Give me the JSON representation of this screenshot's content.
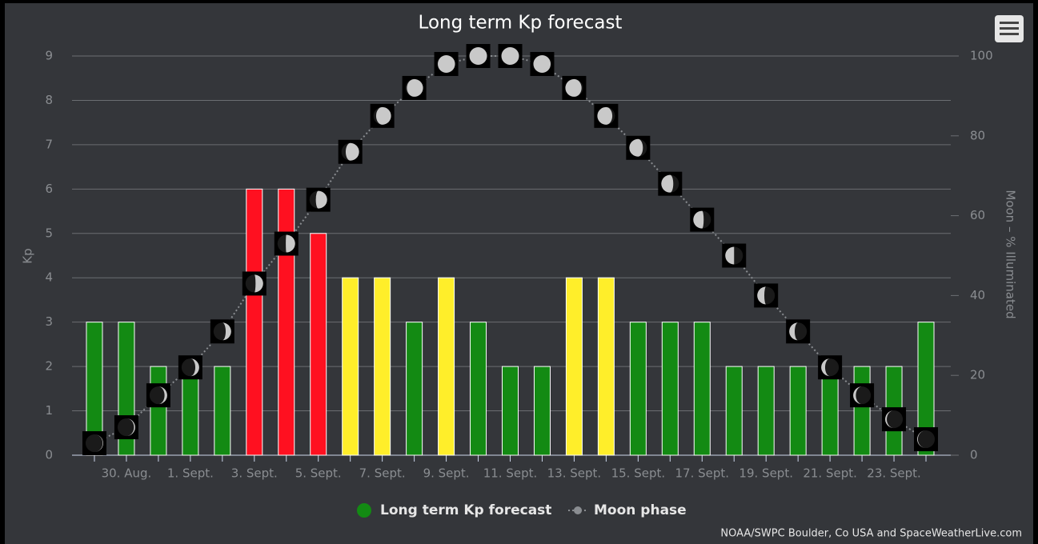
{
  "chart_data": {
    "type": "bar",
    "title": "Long term Kp forecast",
    "y_label": "Kp",
    "y2_label": "Moon – % Illuminated",
    "credit": "NOAA/SWPC Boulder, Co USA and SpaceWeatherLive.com",
    "categories": [
      null,
      "30. Aug.",
      null,
      "1. Sept.",
      null,
      "3. Sept.",
      null,
      "5. Sept.",
      null,
      "7. Sept.",
      null,
      "9. Sept.",
      null,
      "11. Sept.",
      null,
      "13. Sept.",
      null,
      "15. Sept.",
      null,
      "17. Sept.",
      null,
      "19. Sept.",
      null,
      "21. Sept.",
      null,
      "23. Sept.",
      null
    ],
    "series": [
      {
        "name": "Long term Kp forecast",
        "type": "bar",
        "color": "#138a13",
        "point_colors": [
          "#138a13",
          "#138a13",
          "#138a13",
          "#138a13",
          "#138a13",
          "#ff1020",
          "#ff1020",
          "#ff1020",
          "#ffee2a",
          "#ffee2a",
          "#138a13",
          "#ffee2a",
          "#138a13",
          "#138a13",
          "#138a13",
          "#ffee2a",
          "#ffee2a",
          "#138a13",
          "#138a13",
          "#138a13",
          "#138a13",
          "#138a13",
          "#138a13",
          "#138a13",
          "#138a13",
          "#138a13",
          "#138a13"
        ],
        "values": [
          3,
          3,
          2,
          2,
          2,
          6,
          6,
          5,
          4,
          4,
          3,
          4,
          3,
          2,
          2,
          4,
          4,
          3,
          3,
          3,
          2,
          2,
          2,
          2,
          2,
          2,
          3
        ]
      },
      {
        "name": "Moon phase",
        "type": "line",
        "axis": "y2",
        "color": "#8a8d91",
        "values": [
          3,
          7,
          15,
          22,
          31,
          43,
          53,
          64,
          76,
          85,
          92,
          98,
          100,
          100,
          98,
          92,
          85,
          77,
          68,
          59,
          50,
          40,
          31,
          22,
          15,
          9,
          4
        ]
      }
    ],
    "ylim": [
      0,
      9
    ],
    "yticks": [
      0,
      1,
      2,
      3,
      4,
      5,
      6,
      7,
      8,
      9
    ],
    "y2lim": [
      0,
      100
    ],
    "y2ticks": [
      0,
      20,
      40,
      60,
      80,
      100
    ],
    "grid": true
  }
}
